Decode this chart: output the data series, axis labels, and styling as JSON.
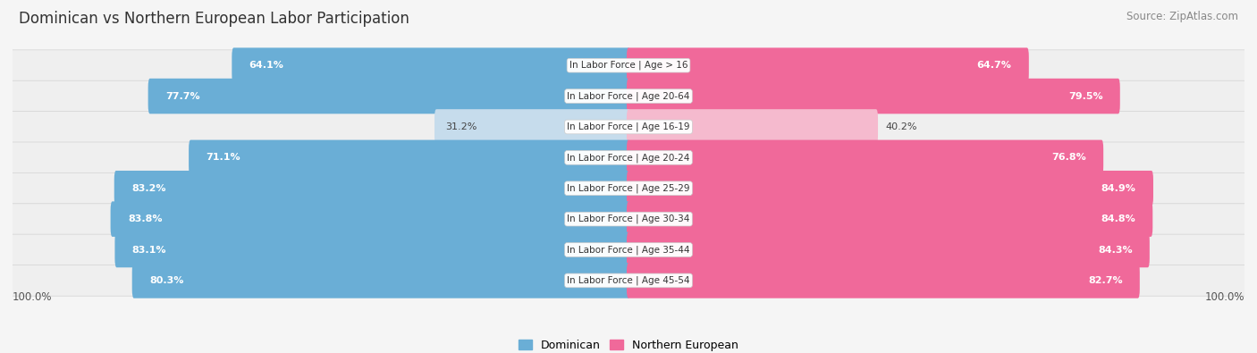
{
  "title": "Dominican vs Northern European Labor Participation",
  "source": "Source: ZipAtlas.com",
  "categories": [
    "In Labor Force | Age > 16",
    "In Labor Force | Age 20-64",
    "In Labor Force | Age 16-19",
    "In Labor Force | Age 20-24",
    "In Labor Force | Age 25-29",
    "In Labor Force | Age 30-34",
    "In Labor Force | Age 35-44",
    "In Labor Force | Age 45-54"
  ],
  "dominican": [
    64.1,
    77.7,
    31.2,
    71.1,
    83.2,
    83.8,
    83.1,
    80.3
  ],
  "northern_european": [
    64.7,
    79.5,
    40.2,
    76.8,
    84.9,
    84.8,
    84.3,
    82.7
  ],
  "dominican_color": "#6AAED6",
  "dominican_light_color": "#C6DCEC",
  "northern_european_color": "#F0699A",
  "northern_european_light_color": "#F5BACE",
  "background_color": "#f5f5f5",
  "row_bg_even": "#f0f0f0",
  "row_bg_odd": "#e8e8e8",
  "max_value": 100.0,
  "bar_height": 0.55,
  "title_fontsize": 12,
  "source_fontsize": 8.5,
  "label_fontsize": 7.5,
  "value_fontsize": 8
}
